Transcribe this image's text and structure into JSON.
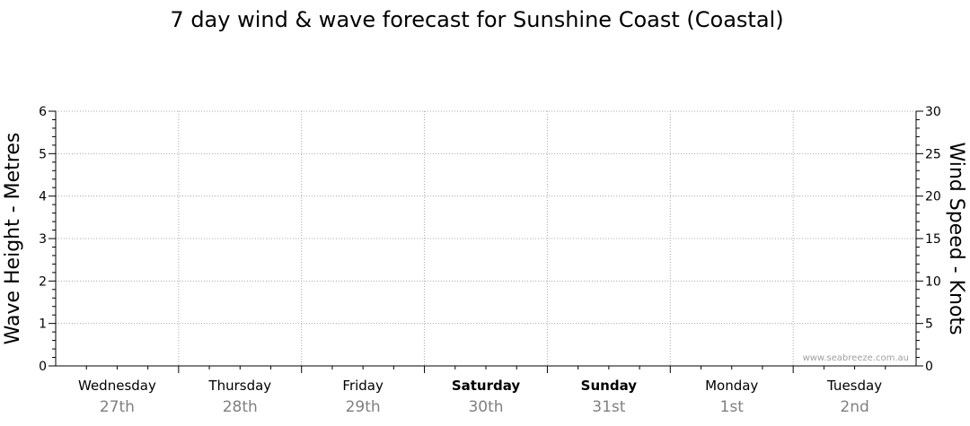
{
  "chart_data": {
    "type": "line",
    "title": "7 day wind & wave forecast for Sunshine Coast (Coastal)",
    "ylabel_left": "Wave Height - Metres",
    "ylabel_right": "Wind Speed - Knots",
    "ylim_left": [
      0,
      6
    ],
    "ylim_right": [
      0,
      30
    ],
    "yticks_left": [
      "0",
      "1",
      "2",
      "3",
      "4",
      "5",
      "6"
    ],
    "yticks_right": [
      "0",
      "5",
      "10",
      "15",
      "20",
      "25",
      "30"
    ],
    "grid": true,
    "days": [
      {
        "name": "Wednesday",
        "date": "27th",
        "bold": false
      },
      {
        "name": "Thursday",
        "date": "28th",
        "bold": false
      },
      {
        "name": "Friday",
        "date": "29th",
        "bold": false
      },
      {
        "name": "Saturday",
        "date": "30th",
        "bold": true
      },
      {
        "name": "Sunday",
        "date": "31st",
        "bold": true
      },
      {
        "name": "Monday",
        "date": "1st",
        "bold": false
      },
      {
        "name": "Tuesday",
        "date": "2nd",
        "bold": false
      }
    ],
    "series": [],
    "credit": "www.seabreeze.com.au"
  }
}
